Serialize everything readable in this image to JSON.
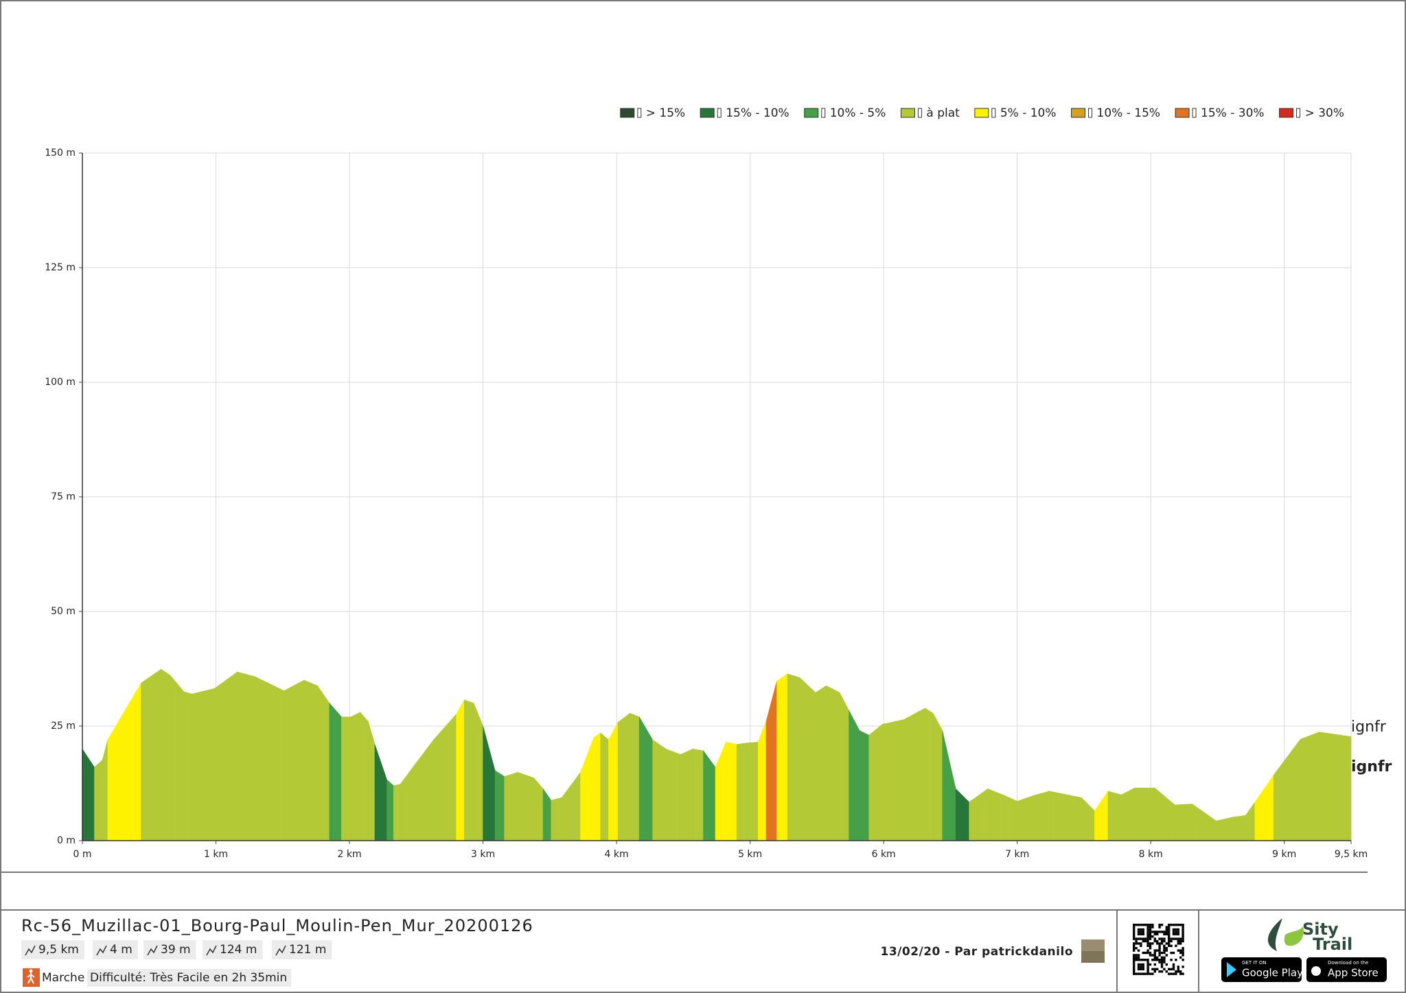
{
  "chart_data": {
    "type": "elevation-profile",
    "x": [
      0,
      0.09,
      0.15,
      0.19,
      0.44,
      0.59,
      0.66,
      0.76,
      0.82,
      0.99,
      1.16,
      1.29,
      1.39,
      1.51,
      1.66,
      1.76,
      1.85,
      1.94,
      2.01,
      2.08,
      2.14,
      2.19,
      2.28,
      2.33,
      2.38,
      2.49,
      2.63,
      2.8,
      2.86,
      2.93,
      3.0,
      3.09,
      3.16,
      3.26,
      3.38,
      3.45,
      3.51,
      3.59,
      3.73,
      3.83,
      3.88,
      3.94,
      4.01,
      4.1,
      4.17,
      4.27,
      4.37,
      4.48,
      4.57,
      4.65,
      4.74,
      4.82,
      4.9,
      4.97,
      5.06,
      5.12,
      5.2,
      5.28,
      5.37,
      5.49,
      5.57,
      5.67,
      5.74,
      5.82,
      5.89,
      5.99,
      6.15,
      6.31,
      6.37,
      6.44,
      6.54,
      6.64,
      6.78,
      6.91,
      7.0,
      7.14,
      7.24,
      7.48,
      7.58,
      7.68,
      7.78,
      7.88,
      8.03,
      8.18,
      8.31,
      8.49,
      8.61,
      8.71,
      8.78,
      8.92,
      9.12,
      9.26,
      9.5
    ],
    "values": [
      20,
      16,
      17.6,
      22,
      34.4,
      37.4,
      36,
      32.5,
      32,
      33.2,
      36.8,
      35.8,
      34.4,
      32.7,
      35,
      33.8,
      30,
      27,
      27,
      28,
      26,
      21,
      13.3,
      12,
      12.3,
      16.6,
      22,
      27.6,
      30.7,
      30,
      25,
      15.3,
      14,
      14.9,
      13.7,
      11.3,
      8.8,
      9.4,
      14.9,
      22.5,
      23.5,
      22,
      25.8,
      27.8,
      27,
      22,
      20,
      18.8,
      20,
      19.6,
      16,
      21.5,
      21,
      21.3,
      21.5,
      26,
      34.8,
      36.4,
      35.6,
      32.3,
      33.8,
      32.3,
      28.4,
      24,
      23,
      25.4,
      26.4,
      28.9,
      27.8,
      24,
      11.3,
      8.4,
      11.3,
      9.8,
      8.6,
      10,
      10.8,
      9.4,
      6.5,
      10.8,
      10,
      11.5,
      11.5,
      7.8,
      8,
      4.3,
      5.1,
      5.5,
      8.4,
      14.3,
      22.1,
      23.7,
      22.7
    ],
    "segment_slope_class": [
      1,
      3,
      3,
      4,
      3,
      3,
      3,
      3,
      3,
      3,
      3,
      3,
      3,
      3,
      3,
      3,
      2,
      3,
      3,
      3,
      3,
      1,
      2,
      3,
      3,
      3,
      3,
      4,
      3,
      3,
      1,
      2,
      3,
      3,
      3,
      2,
      3,
      3,
      4,
      4,
      3,
      4,
      3,
      3,
      2,
      3,
      3,
      3,
      3,
      2,
      4,
      4,
      3,
      3,
      4,
      6,
      4,
      3,
      3,
      3,
      3,
      3,
      2,
      2,
      3,
      3,
      3,
      3,
      3,
      2,
      1,
      3,
      3,
      3,
      3,
      3,
      3,
      3,
      4,
      3,
      3,
      3,
      3,
      3,
      3,
      3,
      3,
      3,
      4,
      3,
      3,
      3
    ],
    "slope_classes": [
      {
        "name": "> 15%",
        "color": "#2f4a33"
      },
      {
        "name": "15% - 10%",
        "color": "#27763a"
      },
      {
        "name": "10% - 5%",
        "color": "#45a047"
      },
      {
        "name": "à plat",
        "color": "#b3c935"
      },
      {
        "name": "5% - 10%",
        "color": "#fff200"
      },
      {
        "name": "10% - 15%",
        "color": "#d6a21e"
      },
      {
        "name": "15% - 30%",
        "color": "#e0741f"
      },
      {
        "name": "> 30%",
        "color": "#d02b1b"
      }
    ],
    "xlim": [
      0,
      9.5
    ],
    "ylim": [
      0,
      150
    ],
    "xticks": [
      {
        "value": 0,
        "label": "0 m"
      },
      {
        "value": 1,
        "label": "1 km"
      },
      {
        "value": 2,
        "label": "2 km"
      },
      {
        "value": 3,
        "label": "3 km"
      },
      {
        "value": 4,
        "label": "4 km"
      },
      {
        "value": 5,
        "label": "5 km"
      },
      {
        "value": 6,
        "label": "6 km"
      },
      {
        "value": 7,
        "label": "7 km"
      },
      {
        "value": 8,
        "label": "8 km"
      },
      {
        "value": 9,
        "label": "9 km"
      },
      {
        "value": 9.5,
        "label": "9,5 km"
      }
    ],
    "yticks": [
      {
        "value": 0,
        "label": "0 m"
      },
      {
        "value": 25,
        "label": "25 m"
      },
      {
        "value": 50,
        "label": "50 m"
      },
      {
        "value": 75,
        "label": "75 m"
      },
      {
        "value": 100,
        "label": "100 m"
      },
      {
        "value": 125,
        "label": "125 m"
      },
      {
        "value": 150,
        "label": "150 m"
      }
    ],
    "grid": true,
    "legend": "top-right",
    "annotations": [
      "ignfr",
      "ignfr"
    ]
  },
  "footer": {
    "title": "Rc-56_Muzillac-01_Bourg-Paul_Moulin-Pen_Mur_20200126",
    "stats": [
      "9,5 km",
      "4 m",
      "39 m",
      "124 m",
      "121 m"
    ],
    "activity": "Marche",
    "difficulty": "Difficulté: Très Facile en 2h 35min",
    "credit": "13/02/20 - Par patrickdanilo",
    "logo": [
      "Sity",
      "Trail"
    ],
    "badges": [
      {
        "small": "GET IT ON",
        "big": "Google Play"
      },
      {
        "small": "Download on the",
        "big": "App Store"
      }
    ]
  }
}
